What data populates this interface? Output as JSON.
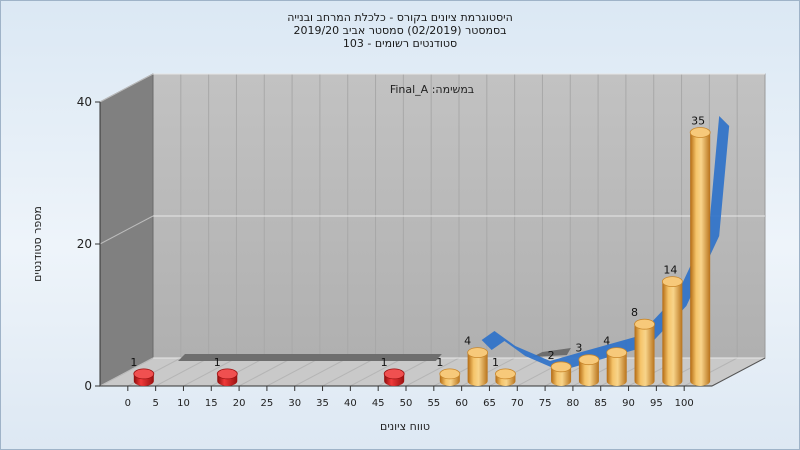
{
  "title": {
    "line1": "היסטוגרמת ציונים בקורס - כלכלת המרחב ובנייה",
    "line2": "בסמסטר (02/2019) סמסטר אביב 2019/20",
    "line3": "סטודנטים רשומים - 103"
  },
  "chart_data": {
    "type": "bar",
    "title": "היסטוגרמת ציונים בקורס - כלכלת המרחב ובנייה",
    "subtitle": "בסמסטר (02/2019) סמסטר אביב 2019/20 | סטודנטים רשומים - 103",
    "annotation": "Final_A :במשימה",
    "xlabel": "טווח ציונים",
    "ylabel": "מספר סטודנטים",
    "ylim": [
      0,
      40
    ],
    "y_ticks": [
      "0",
      "20",
      "40"
    ],
    "x_ticks": [
      "0",
      "5",
      "10",
      "15",
      "20",
      "25",
      "30",
      "35",
      "40",
      "45",
      "50",
      "55",
      "60",
      "65",
      "70",
      "75",
      "80",
      "85",
      "90",
      "95",
      "100"
    ],
    "grid": true,
    "series": [
      {
        "bars": [
          {
            "x": 0,
            "value": 1,
            "color": "#d42020"
          },
          {
            "x": 15,
            "value": 1,
            "color": "#d42020"
          },
          {
            "x": 45,
            "value": 1,
            "color": "#d42020"
          },
          {
            "x": 55,
            "value": 1,
            "color": "#e8a23c"
          },
          {
            "x": 60,
            "value": 4,
            "color": "#e8a23c"
          },
          {
            "x": 65,
            "value": 1,
            "color": "#e8a23c"
          },
          {
            "x": 75,
            "value": 2,
            "color": "#e8a23c"
          },
          {
            "x": 80,
            "value": 3,
            "color": "#e8a23c"
          },
          {
            "x": 85,
            "value": 4,
            "color": "#e8a23c"
          },
          {
            "x": 90,
            "value": 8,
            "color": "#e8a23c"
          },
          {
            "x": 95,
            "value": 14,
            "color": "#e8a23c"
          },
          {
            "x": 100,
            "value": 35,
            "color": "#e8a23c"
          }
        ]
      }
    ],
    "colors": {
      "fail": "#d42020",
      "pass": "#e8a23c",
      "trend": "#2f72c9",
      "floor_band": "#6e6e6e"
    }
  }
}
